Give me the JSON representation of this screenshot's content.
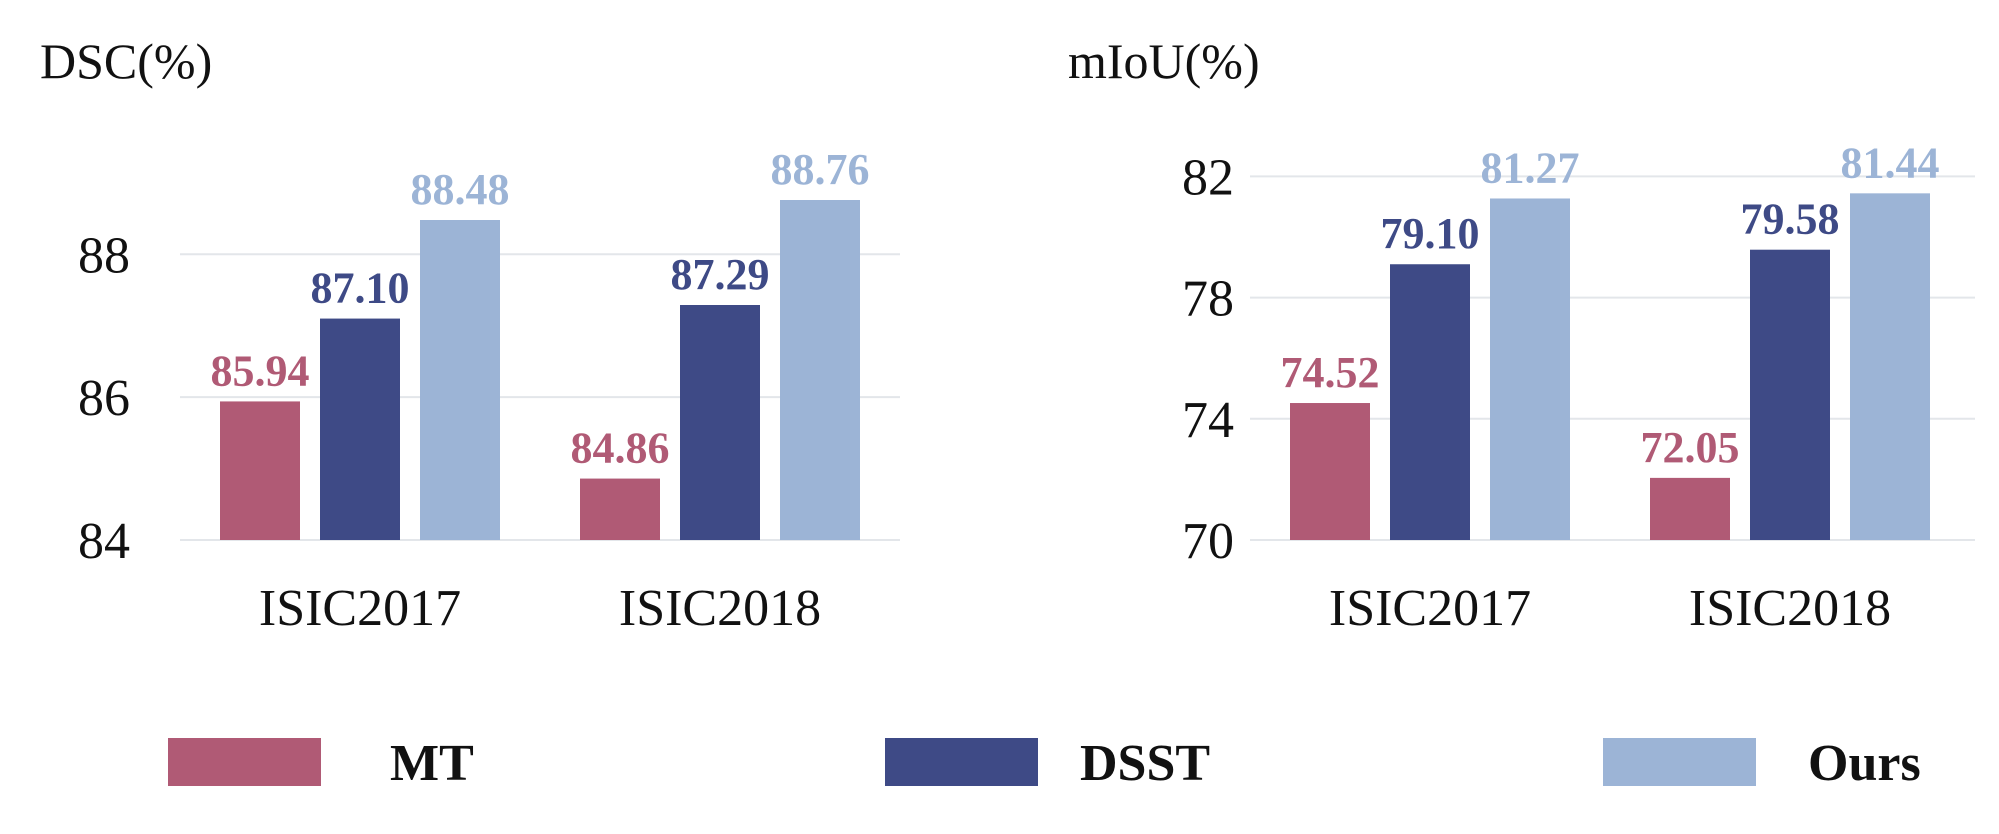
{
  "colors": {
    "MT": "#b05a75",
    "DSST": "#3e4a86",
    "Ours": "#9cb4d6",
    "grid": "#e3e6ea",
    "text": "#111111"
  },
  "legend": [
    {
      "name": "MT",
      "color": "#b05a75"
    },
    {
      "name": "DSST",
      "color": "#3e4a86"
    },
    {
      "name": "Ours",
      "color": "#9cb4d6"
    }
  ],
  "chart_data": [
    {
      "type": "bar",
      "title": "DSC(%)",
      "xlabel": "",
      "ylabel": "DSC(%)",
      "categories": [
        "ISIC2017",
        "ISIC2018"
      ],
      "series": [
        {
          "name": "MT",
          "values": [
            85.94,
            84.86
          ]
        },
        {
          "name": "DSST",
          "values": [
            87.1,
            87.29
          ]
        },
        {
          "name": "Ours",
          "values": [
            88.48,
            88.76
          ]
        }
      ],
      "value_labels": [
        [
          "85.94",
          "84.86"
        ],
        [
          "87.10",
          "87.29"
        ],
        [
          "88.48",
          "88.76"
        ]
      ],
      "ylim": [
        84,
        89.6
      ],
      "yticks": [
        84,
        86,
        88
      ],
      "grid": true
    },
    {
      "type": "bar",
      "title": "mIoU(%)",
      "xlabel": "",
      "ylabel": "mIoU(%)",
      "categories": [
        "ISIC2017",
        "ISIC2018"
      ],
      "series": [
        {
          "name": "MT",
          "values": [
            74.52,
            72.05
          ]
        },
        {
          "name": "DSST",
          "values": [
            79.1,
            79.58
          ]
        },
        {
          "name": "Ours",
          "values": [
            81.27,
            81.44
          ]
        }
      ],
      "value_labels": [
        [
          "74.52",
          "72.05"
        ],
        [
          "79.10",
          "79.58"
        ],
        [
          "81.27",
          "81.44"
        ]
      ],
      "ylim": [
        70,
        83.2
      ],
      "yticks": [
        70,
        74,
        78,
        82
      ],
      "grid": true
    }
  ]
}
